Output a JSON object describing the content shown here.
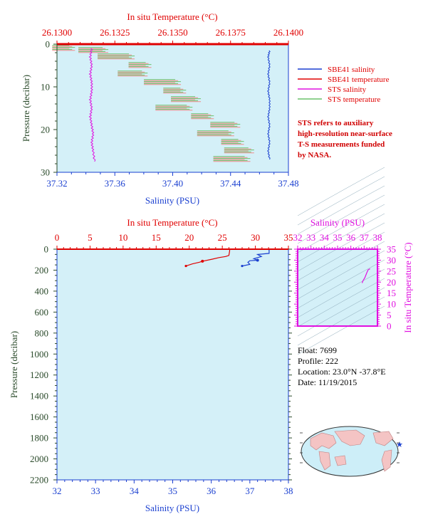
{
  "colors": {
    "salinity_blue": "#1a3fd0",
    "temperature_red": "#e00000",
    "sts_salinity_magenta": "#e010e0",
    "sts_temperature_green": "#6cc26c",
    "sts_temperature_pink": "#f08a8a",
    "plot_bg": "#d4f0f8",
    "pressure_axis_green": "#2a4a2a",
    "map_land": "#f4c4c4",
    "map_ocean": "#cdeef8"
  },
  "top_chart": {
    "type": "line",
    "top_axis_label": "In situ Temperature (°C)",
    "bottom_axis_label": "Salinity (PSU)",
    "left_axis_label": "Pressure (decibar)",
    "top_ticks": [
      "26.1300",
      "26.1325",
      "26.1350",
      "26.1375",
      "26.1400"
    ],
    "bottom_ticks": [
      "37.32",
      "37.36",
      "37.40",
      "37.44",
      "37.48"
    ],
    "left_ticks": [
      "0",
      "10",
      "20",
      "30"
    ],
    "legend": [
      {
        "label": "SBE41 salinity",
        "color": "#1a3fd0"
      },
      {
        "label": "SBE41 temperature",
        "color": "#e00000"
      },
      {
        "label": "STS salinity",
        "color": "#e010e0"
      },
      {
        "label": "STS temperature",
        "color": "#6cc26c"
      }
    ],
    "note": [
      "STS refers to auxiliary",
      "high-resolution near-surface",
      "T-S measurements funded",
      "by NASA."
    ]
  },
  "bottom_chart": {
    "type": "line",
    "top_axis_label": "In situ Temperature (°C)",
    "bottom_axis_label": "Salinity (PSU)",
    "left_axis_label": "Pressure (decibar)",
    "top_ticks": [
      "0",
      "5",
      "10",
      "15",
      "20",
      "25",
      "30",
      "35"
    ],
    "bottom_ticks": [
      "32",
      "33",
      "34",
      "35",
      "36",
      "37",
      "38"
    ],
    "left_ticks": [
      "0",
      "200",
      "400",
      "600",
      "800",
      "1000",
      "1200",
      "1400",
      "1600",
      "1800",
      "2000",
      "2200"
    ]
  },
  "ts_chart": {
    "type": "line",
    "top_axis_label": "Salinity (PSU)",
    "right_axis_label": "In situ Temperature (°C)",
    "top_ticks": [
      "32",
      "33",
      "34",
      "35",
      "36",
      "37",
      "38"
    ],
    "right_ticks": [
      "0",
      "5",
      "10",
      "15",
      "20",
      "25",
      "30",
      "35"
    ]
  },
  "float_info": {
    "float": "Float:  7699",
    "profile": "Profile:  222",
    "location": "Location:  23.0°N  -37.8°E",
    "date": "Date:  11/19/2015"
  },
  "chart_data": [
    {
      "type": "line",
      "title": "",
      "xlabel": "Salinity (PSU)",
      "x2label": "In situ Temperature (°C)",
      "ylabel": "Pressure (decibar)",
      "xlim": [
        37.32,
        37.48
      ],
      "x2lim": [
        26.13,
        26.14
      ],
      "ylim": [
        30,
        0
      ],
      "series": [
        {
          "name": "SBE41 salinity",
          "axis": "salinity",
          "points": [
            [
              37.467,
              1.5
            ],
            [
              37.466,
              3
            ],
            [
              37.467,
              5
            ],
            [
              37.466,
              7
            ],
            [
              37.467,
              9
            ],
            [
              37.466,
              11
            ],
            [
              37.467,
              13
            ],
            [
              37.467,
              15
            ],
            [
              37.466,
              17
            ],
            [
              37.467,
              19
            ],
            [
              37.466,
              21
            ],
            [
              37.467,
              23
            ],
            [
              37.466,
              25
            ],
            [
              37.467,
              27
            ]
          ]
        },
        {
          "name": "STS salinity",
          "axis": "salinity",
          "points": [
            [
              37.344,
              1
            ],
            [
              37.343,
              3
            ],
            [
              37.344,
              5
            ],
            [
              37.343,
              7
            ],
            [
              37.344,
              9
            ],
            [
              37.344,
              11
            ],
            [
              37.343,
              13
            ],
            [
              37.344,
              15
            ],
            [
              37.343,
              17
            ],
            [
              37.344,
              19
            ],
            [
              37.345,
              21
            ],
            [
              37.344,
              23
            ],
            [
              37.345,
              25
            ],
            [
              37.346,
              27.5
            ]
          ]
        },
        {
          "name": "STS temperature",
          "axis": "temperature",
          "points": [
            [
              26.1302,
              1
            ],
            [
              26.1315,
              1.5
            ],
            [
              26.1325,
              3
            ],
            [
              26.1335,
              5
            ],
            [
              26.1332,
              7
            ],
            [
              26.1345,
              9
            ],
            [
              26.135,
              11
            ],
            [
              26.1355,
              13
            ],
            [
              26.135,
              15
            ],
            [
              26.1362,
              17
            ],
            [
              26.1372,
              19
            ],
            [
              26.1368,
              21
            ],
            [
              26.1375,
              23
            ],
            [
              26.1378,
              25
            ],
            [
              26.1375,
              27
            ]
          ]
        }
      ]
    },
    {
      "type": "line",
      "title": "",
      "xlabel": "Salinity (PSU)",
      "x2label": "In situ Temperature (°C)",
      "ylabel": "Pressure (decibar)",
      "xlim": [
        32,
        38
      ],
      "x2lim": [
        0,
        35
      ],
      "ylim": [
        2200,
        0
      ],
      "series": [
        {
          "name": "SBE41 salinity",
          "axis": "salinity",
          "points": [
            [
              37.4,
              0
            ],
            [
              37.5,
              5
            ],
            [
              37.5,
              40
            ],
            [
              37.2,
              50
            ],
            [
              37.3,
              70
            ],
            [
              37.1,
              90
            ],
            [
              37.2,
              105
            ],
            [
              37.0,
              110
            ],
            [
              36.95,
              125
            ],
            [
              37.0,
              145
            ],
            [
              36.8,
              160
            ]
          ]
        },
        {
          "name": "SBE41 temperature",
          "axis": "temperature",
          "points": [
            [
              26.13,
              0
            ],
            [
              26.1,
              20
            ],
            [
              26.0,
              60
            ],
            [
              25.5,
              70
            ],
            [
              24.5,
              80
            ],
            [
              23.5,
              95
            ],
            [
              22.0,
              115
            ],
            [
              21.5,
              125
            ],
            [
              20.5,
              140
            ],
            [
              19.5,
              160
            ]
          ]
        }
      ]
    },
    {
      "type": "line",
      "title": "",
      "xlabel": "Salinity (PSU)",
      "ylabel": "In situ Temperature (°C)",
      "xlim": [
        32,
        38
      ],
      "ylim": [
        0,
        35
      ],
      "series": [
        {
          "name": "SBE41 T-S",
          "points": [
            [
              37.45,
              26.1
            ],
            [
              37.3,
              25.6
            ],
            [
              37.2,
              24.3
            ],
            [
              37.05,
              22.0
            ],
            [
              36.9,
              20.5
            ],
            [
              36.85,
              19.6
            ]
          ]
        }
      ]
    }
  ]
}
